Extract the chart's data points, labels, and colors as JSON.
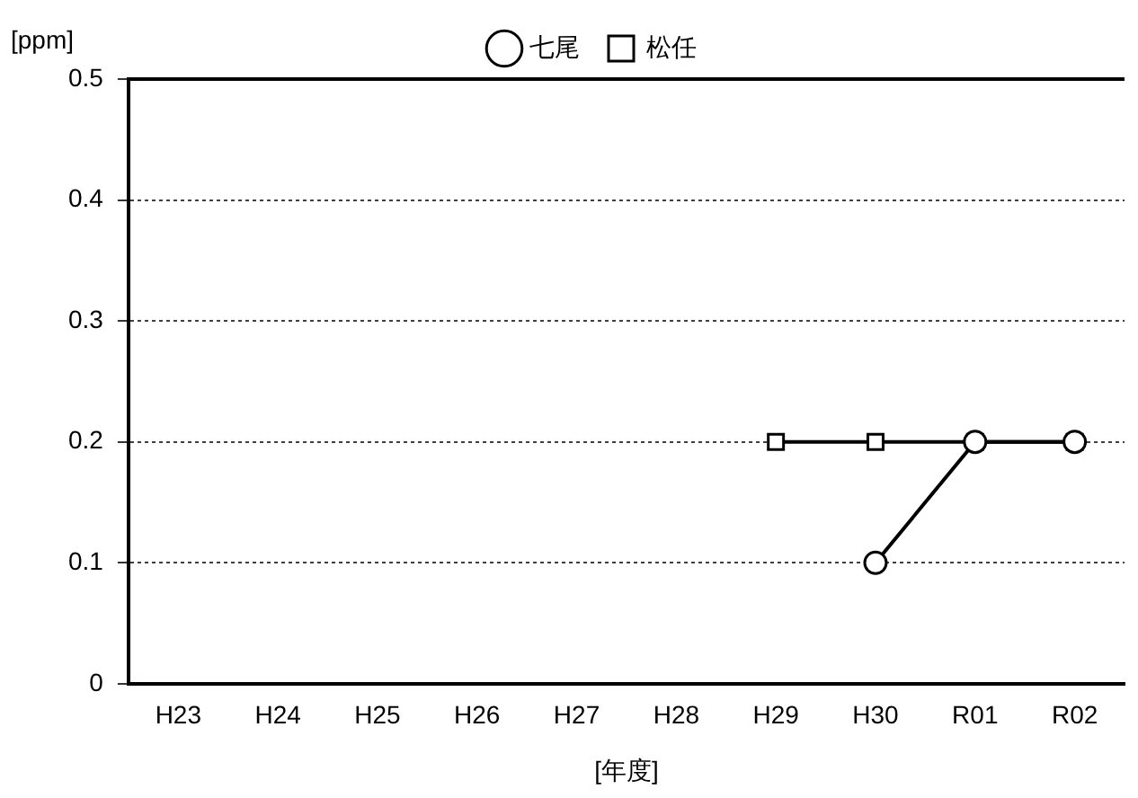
{
  "chart_data": {
    "type": "line",
    "xlabel": "[年度]",
    "ylabel": "[ppm]",
    "categories": [
      "H23",
      "H24",
      "H25",
      "H26",
      "H27",
      "H28",
      "H29",
      "H30",
      "R01",
      "R02"
    ],
    "series": [
      {
        "name": "七尾",
        "color": "#000000",
        "marker": "circle",
        "values": [
          null,
          null,
          null,
          null,
          null,
          null,
          null,
          0.1,
          0.2,
          0.2
        ]
      },
      {
        "name": "松任",
        "color": "#000000",
        "marker": "square",
        "values": [
          null,
          null,
          null,
          null,
          null,
          null,
          0.2,
          0.2,
          0.2,
          0.2
        ]
      }
    ],
    "ylim": [
      0,
      0.5
    ],
    "yticks": [
      0,
      0.1,
      0.2,
      0.3,
      0.4,
      0.5
    ],
    "grid": "y",
    "legend": "top",
    "line_style": "solid"
  }
}
